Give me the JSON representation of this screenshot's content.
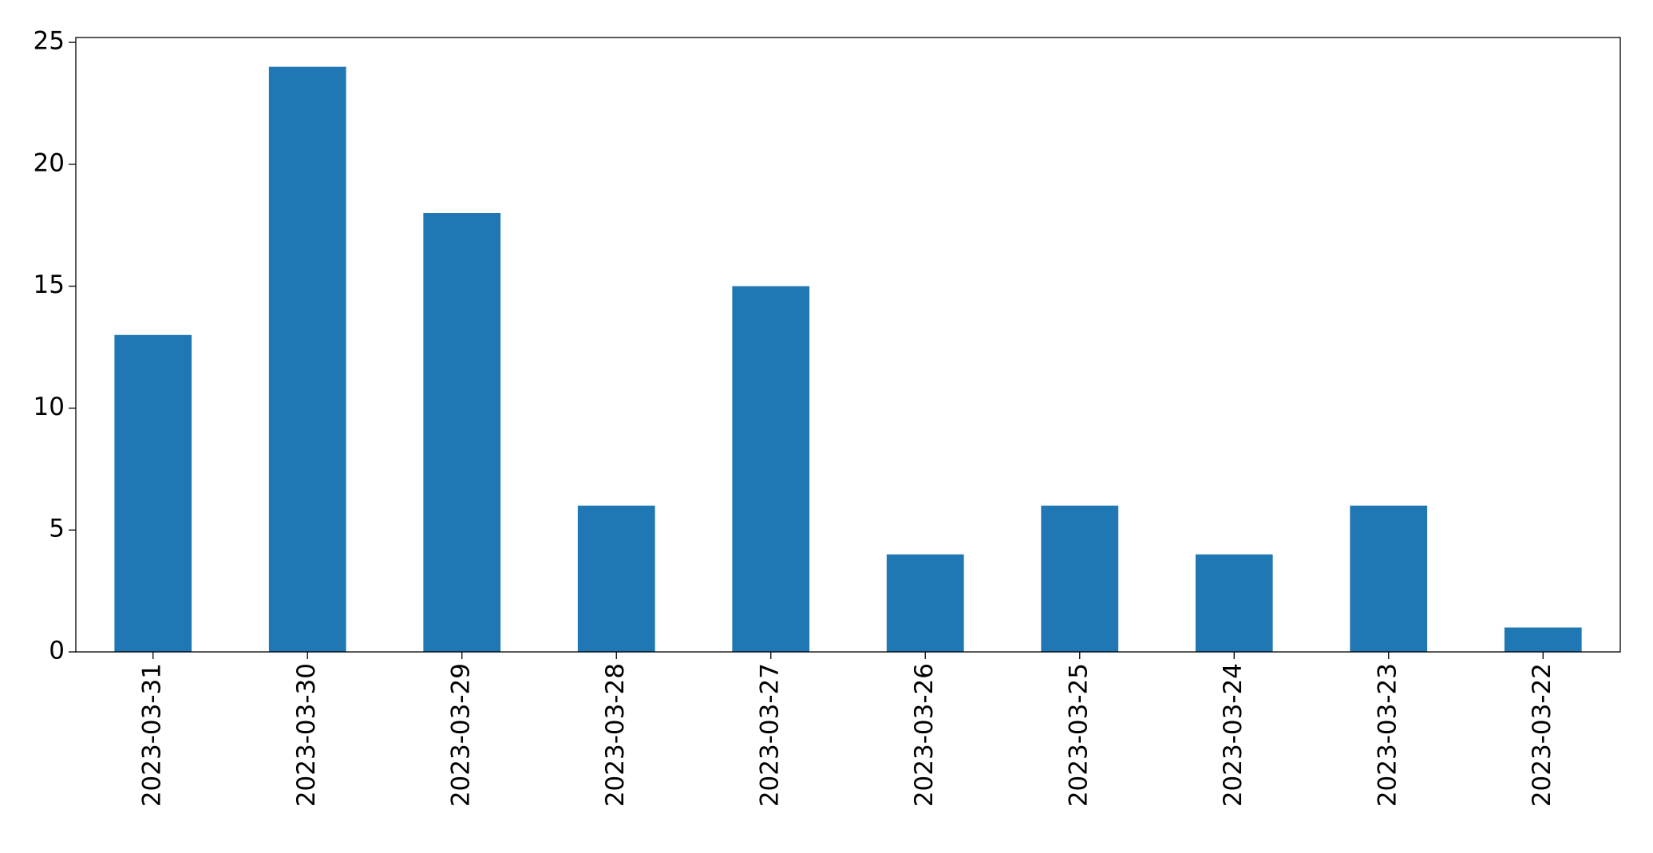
{
  "chart_data": {
    "type": "bar",
    "categories": [
      "2023-03-31",
      "2023-03-30",
      "2023-03-29",
      "2023-03-28",
      "2023-03-27",
      "2023-03-26",
      "2023-03-25",
      "2023-03-24",
      "2023-03-23",
      "2023-03-22"
    ],
    "values": [
      13,
      24,
      18,
      6,
      15,
      4,
      6,
      4,
      6,
      1
    ],
    "color": "#1f77b4",
    "ylim": [
      0,
      25.2
    ],
    "yticks": [
      0,
      5,
      10,
      15,
      20,
      25
    ],
    "grid": false
  }
}
